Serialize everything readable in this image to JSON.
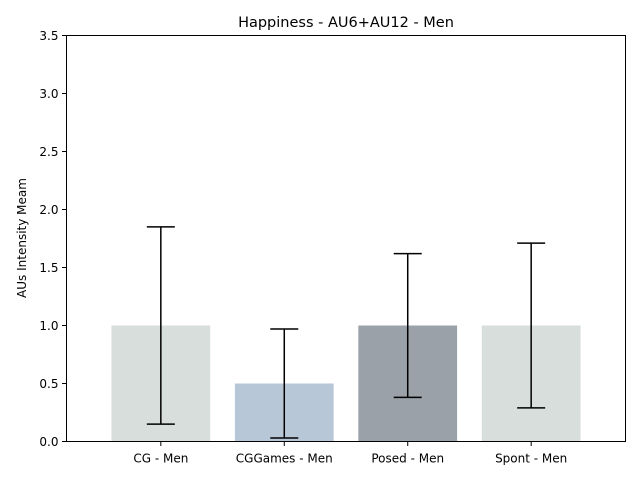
{
  "chart_data": {
    "type": "bar",
    "title": "Happiness - AU6+AU12 - Men",
    "xlabel": "",
    "ylabel": "AUs Intensity Meam",
    "categories": [
      "CG - Men",
      "CGGames - Men",
      "Posed - Men",
      "Spont - Men"
    ],
    "values": [
      1.0,
      0.5,
      1.0,
      1.0
    ],
    "error_low": [
      0.15,
      0.03,
      0.38,
      0.29
    ],
    "error_high": [
      1.85,
      0.97,
      1.62,
      1.71
    ],
    "bar_colors": [
      "#d8dedb",
      "#b8c7d8",
      "#9aa1a8",
      "#d8dedb"
    ],
    "ylim": [
      0,
      3.5
    ],
    "yticks": [
      0.0,
      0.5,
      1.0,
      1.5,
      2.0,
      2.5,
      3.0,
      3.5
    ],
    "ytick_labels": [
      "0.0",
      "0.5",
      "1.0",
      "1.5",
      "2.0",
      "2.5",
      "3.0",
      "3.5"
    ],
    "grid": false,
    "legend": "none"
  }
}
